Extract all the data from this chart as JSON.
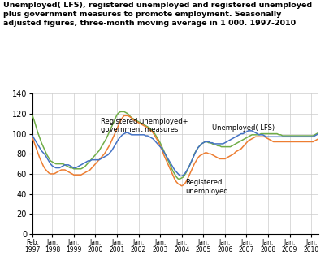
{
  "title_line1": "Unemployed( LFS), registered unemployed and registered unemployed",
  "title_line2": "plus government measures to promote employment. Seasonally",
  "title_line3": "adjusted figures, three-month moving average in 1 000. 1997-2010",
  "title_fontsize": 6.8,
  "ylim": [
    0,
    140
  ],
  "yticks": [
    0,
    20,
    40,
    60,
    80,
    100,
    120,
    140
  ],
  "colors": {
    "lfs": "#4472C4",
    "registered": "#ED7D31",
    "reg_plus_gov": "#70AD47"
  },
  "tick_labels_top": [
    "Feb.",
    "Jan.",
    "Jan.",
    "Jan.",
    "Jan.",
    "Jan.",
    "Jan.",
    "Jan.",
    "Jan.",
    "Jan.",
    "Jan.",
    "Jan.",
    "Jan.",
    "Jan."
  ],
  "tick_labels_bot": [
    "1997",
    "1998",
    "1999",
    "2000",
    "2001",
    "2002",
    "2003",
    "2004",
    "2005",
    "2006",
    "2007",
    "2008",
    "2009",
    "2010"
  ],
  "ann_reg_gov": {
    "text": "Registered unemployed+\ngovernment measures",
    "xi": 38,
    "y": 116
  },
  "ann_lfs": {
    "text": "Unemployed( LFS)",
    "xi": 100,
    "y": 109
  },
  "ann_reg": {
    "text": "Registered\nunemployed",
    "xi": 85,
    "y": 55
  },
  "lfs_y": [
    98,
    95,
    92,
    89,
    86,
    83,
    81,
    79,
    76,
    73,
    70,
    68,
    67,
    66,
    66,
    66,
    67,
    68,
    69,
    69,
    69,
    68,
    67,
    66,
    66,
    67,
    68,
    69,
    70,
    71,
    72,
    73,
    73,
    74,
    74,
    74,
    74,
    74,
    75,
    76,
    77,
    78,
    79,
    81,
    83,
    86,
    89,
    92,
    95,
    97,
    99,
    100,
    101,
    101,
    100,
    99,
    99,
    99,
    99,
    99,
    99,
    99,
    99,
    98,
    98,
    97,
    96,
    95,
    93,
    91,
    89,
    87,
    85,
    82,
    79,
    76,
    73,
    70,
    67,
    64,
    62,
    60,
    58,
    58,
    59,
    61,
    64,
    67,
    71,
    75,
    79,
    83,
    86,
    88,
    90,
    91,
    92,
    92,
    92,
    91,
    91,
    90,
    90,
    90,
    90,
    90,
    90,
    91,
    92,
    93,
    94,
    95,
    96,
    97,
    98,
    99,
    100,
    100,
    101,
    102,
    103,
    103,
    103,
    102,
    101,
    100,
    99,
    99,
    99,
    98,
    97,
    97,
    97,
    97,
    97,
    97,
    97,
    97,
    97,
    97,
    97,
    97,
    97,
    97,
    97,
    97,
    97,
    97,
    97,
    97,
    97,
    97,
    97,
    97,
    97,
    97,
    97,
    98,
    99,
    100
  ],
  "registered_y": [
    96,
    91,
    86,
    81,
    76,
    72,
    68,
    65,
    63,
    61,
    60,
    60,
    60,
    61,
    62,
    63,
    64,
    64,
    64,
    63,
    62,
    61,
    60,
    59,
    59,
    59,
    59,
    59,
    60,
    61,
    62,
    63,
    64,
    66,
    68,
    70,
    72,
    74,
    76,
    78,
    80,
    83,
    86,
    89,
    93,
    97,
    101,
    105,
    109,
    113,
    116,
    118,
    118,
    118,
    117,
    116,
    114,
    113,
    112,
    111,
    110,
    109,
    108,
    107,
    106,
    104,
    103,
    101,
    98,
    95,
    92,
    88,
    84,
    79,
    75,
    71,
    67,
    63,
    59,
    55,
    52,
    50,
    49,
    48,
    49,
    51,
    54,
    58,
    62,
    66,
    70,
    73,
    76,
    78,
    79,
    80,
    81,
    81,
    80,
    80,
    79,
    78,
    77,
    76,
    75,
    75,
    75,
    75,
    76,
    77,
    78,
    79,
    80,
    82,
    83,
    84,
    85,
    87,
    89,
    91,
    93,
    94,
    95,
    96,
    97,
    97,
    97,
    97,
    97,
    97,
    96,
    95,
    94,
    93,
    92,
    92,
    92,
    92,
    92,
    92,
    92,
    92,
    92,
    92,
    92,
    92,
    92,
    92,
    92,
    92,
    92,
    92,
    92,
    92,
    92,
    92,
    92,
    93,
    94,
    95
  ],
  "reg_gov_y": [
    118,
    113,
    107,
    101,
    96,
    91,
    87,
    83,
    79,
    76,
    73,
    72,
    71,
    70,
    70,
    70,
    70,
    70,
    69,
    68,
    67,
    66,
    66,
    65,
    65,
    65,
    65,
    65,
    66,
    67,
    69,
    71,
    73,
    75,
    77,
    79,
    81,
    83,
    86,
    89,
    92,
    95,
    99,
    103,
    107,
    111,
    115,
    119,
    121,
    122,
    122,
    122,
    121,
    120,
    118,
    116,
    115,
    114,
    113,
    112,
    111,
    110,
    109,
    108,
    107,
    106,
    104,
    102,
    100,
    97,
    94,
    91,
    87,
    83,
    79,
    75,
    71,
    67,
    63,
    60,
    57,
    55,
    55,
    56,
    57,
    60,
    63,
    67,
    71,
    75,
    80,
    83,
    86,
    88,
    90,
    91,
    92,
    92,
    91,
    91,
    90,
    89,
    89,
    88,
    88,
    87,
    87,
    87,
    87,
    87,
    87,
    88,
    89,
    90,
    91,
    92,
    93,
    94,
    95,
    96,
    97,
    98,
    99,
    99,
    99,
    99,
    99,
    100,
    100,
    100,
    100,
    100,
    100,
    100,
    100,
    100,
    100,
    99,
    99,
    98,
    98,
    98,
    98,
    98,
    98,
    98,
    98,
    98,
    98,
    98,
    98,
    98,
    98,
    98,
    98,
    98,
    98,
    99,
    100,
    101
  ]
}
